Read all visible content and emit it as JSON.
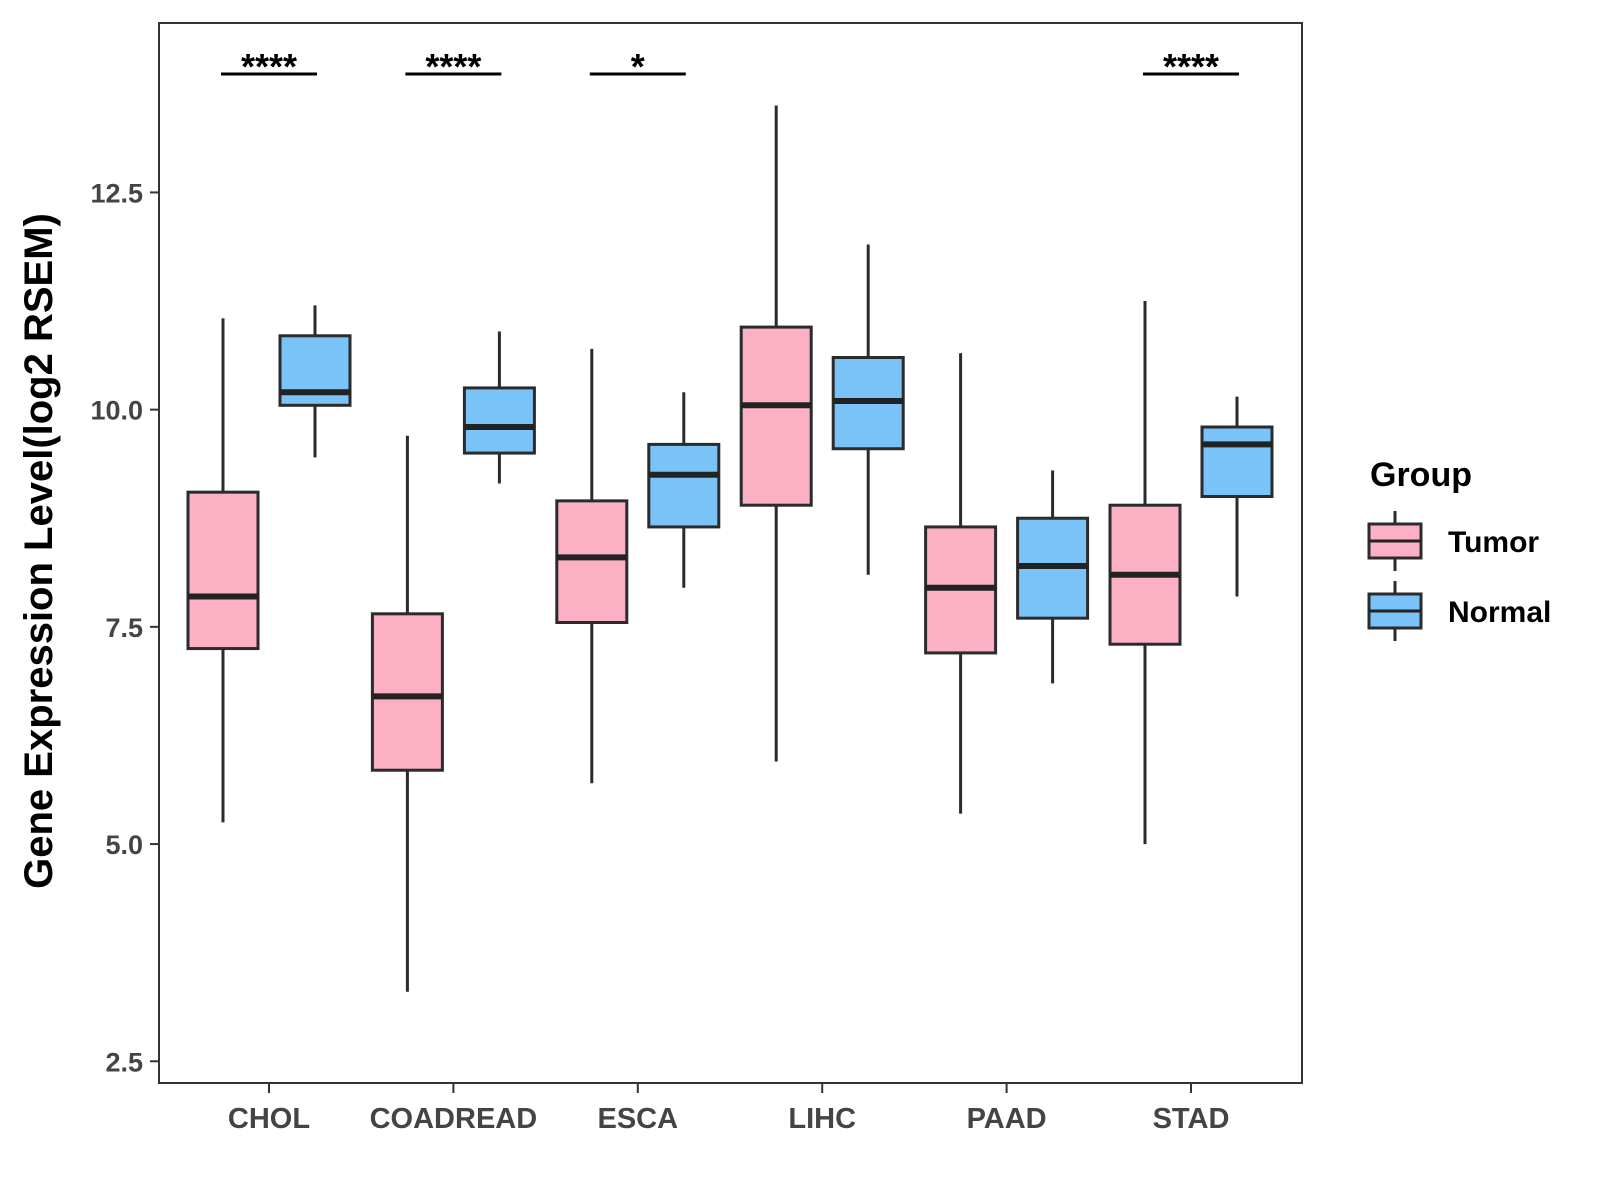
{
  "chart_data": {
    "type": "boxplot",
    "title": "",
    "xlabel": "",
    "ylabel": "Gene Expression Level(log2 RSEM)",
    "ylim": [
      2.25,
      14.45
    ],
    "yticks": [
      2.5,
      5.0,
      7.5,
      10.0,
      12.5
    ],
    "ytick_labels": [
      "2.5",
      "5.0",
      "7.5",
      "10.0",
      "12.5"
    ],
    "categories": [
      "CHOL",
      "COADREAD",
      "ESCA",
      "LIHC",
      "PAAD",
      "STAD"
    ],
    "legend": {
      "title": "Group",
      "position": "right",
      "entries": [
        {
          "name": "Tumor",
          "color": "#FBB1C3"
        },
        {
          "name": "Normal",
          "color": "#7AC3F8"
        }
      ]
    },
    "series": [
      {
        "name": "Tumor",
        "color": "#FBB1C3",
        "boxes": [
          {
            "category": "CHOL",
            "whisker_low": 5.25,
            "q1": 7.25,
            "median": 7.85,
            "q3": 9.05,
            "whisker_high": 11.05
          },
          {
            "category": "COADREAD",
            "whisker_low": 3.3,
            "q1": 5.85,
            "median": 6.7,
            "q3": 7.65,
            "whisker_high": 9.7
          },
          {
            "category": "ESCA",
            "whisker_low": 5.7,
            "q1": 7.55,
            "median": 8.3,
            "q3": 8.95,
            "whisker_high": 10.7
          },
          {
            "category": "LIHC",
            "whisker_low": 5.95,
            "q1": 8.9,
            "median": 10.05,
            "q3": 10.95,
            "whisker_high": 13.5
          },
          {
            "category": "PAAD",
            "whisker_low": 5.35,
            "q1": 7.2,
            "median": 7.95,
            "q3": 8.65,
            "whisker_high": 10.65
          },
          {
            "category": "STAD",
            "whisker_low": 5.0,
            "q1": 7.3,
            "median": 8.1,
            "q3": 8.9,
            "whisker_high": 11.25
          }
        ]
      },
      {
        "name": "Normal",
        "color": "#7AC3F8",
        "boxes": [
          {
            "category": "CHOL",
            "whisker_low": 9.45,
            "q1": 10.05,
            "median": 10.2,
            "q3": 10.85,
            "whisker_high": 11.2
          },
          {
            "category": "COADREAD",
            "whisker_low": 9.15,
            "q1": 9.5,
            "median": 9.8,
            "q3": 10.25,
            "whisker_high": 10.9
          },
          {
            "category": "ESCA",
            "whisker_low": 7.95,
            "q1": 8.65,
            "median": 9.25,
            "q3": 9.6,
            "whisker_high": 10.2
          },
          {
            "category": "LIHC",
            "whisker_low": 8.1,
            "q1": 9.55,
            "median": 10.1,
            "q3": 10.6,
            "whisker_high": 11.9
          },
          {
            "category": "PAAD",
            "whisker_low": 6.85,
            "q1": 7.6,
            "median": 8.2,
            "q3": 8.75,
            "whisker_high": 9.3
          },
          {
            "category": "STAD",
            "whisker_low": 7.85,
            "q1": 9.0,
            "median": 9.6,
            "q3": 9.8,
            "whisker_high": 10.15
          }
        ]
      }
    ],
    "annotations": [
      {
        "category": "CHOL",
        "label": "****"
      },
      {
        "category": "COADREAD",
        "label": "****"
      },
      {
        "category": "ESCA",
        "label": "*"
      },
      {
        "category": "STAD",
        "label": "****"
      }
    ]
  }
}
